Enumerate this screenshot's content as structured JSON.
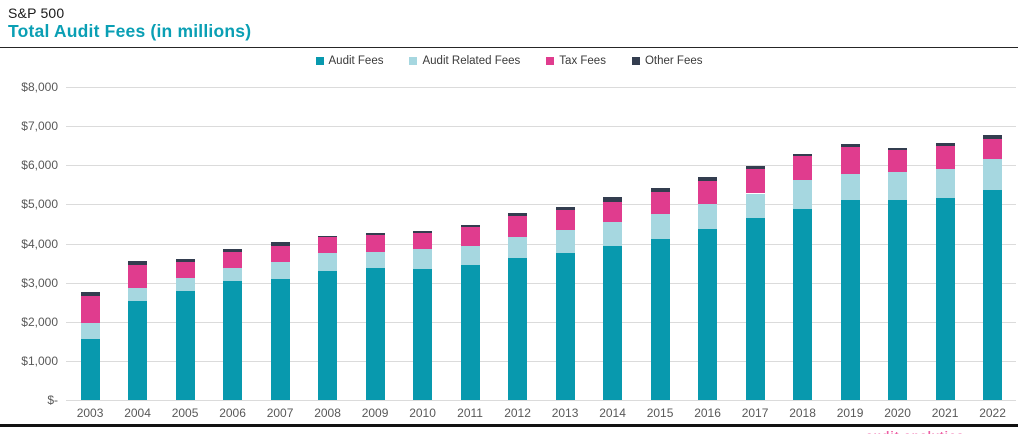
{
  "header": {
    "kicker": "S&P 500",
    "title": "Total Audit Fees (in millions)"
  },
  "colors": {
    "accent_teal": "#0899ae",
    "title_teal": "#0a9fb4",
    "light_blue": "#a6d7e0",
    "pink": "#e03c8e",
    "navy": "#333d4f",
    "gridline": "#dbdbdb",
    "axis_text": "#595959",
    "rule": "#1a1a1a"
  },
  "footer": {
    "watermark": "audit analytics"
  },
  "chart_data": {
    "type": "bar",
    "stacked": true,
    "title": "Total Audit Fees (in millions)",
    "subtitle": "S&P 500",
    "xlabel": "",
    "ylabel": "",
    "ylim": [
      0,
      8000
    ],
    "y_tick_step": 1000,
    "y_tick_labels": [
      "$8,000",
      "$7,000",
      "$6,000",
      "$5,000",
      "$4,000",
      "$3,000",
      "$2,000",
      "$1,000",
      "$-"
    ],
    "grid": true,
    "legend_position": "top-center",
    "categories": [
      "2003",
      "2004",
      "2005",
      "2006",
      "2007",
      "2008",
      "2009",
      "2010",
      "2011",
      "2012",
      "2013",
      "2014",
      "2015",
      "2016",
      "2017",
      "2018",
      "2019",
      "2020",
      "2021",
      "2022"
    ],
    "series": [
      {
        "name": "Audit Fees",
        "key": "audit-fees",
        "color": "#0899ae",
        "values": [
          1570,
          2530,
          2800,
          3050,
          3100,
          3300,
          3370,
          3350,
          3450,
          3630,
          3750,
          3940,
          4120,
          4370,
          4650,
          4890,
          5110,
          5110,
          5170,
          5370
        ]
      },
      {
        "name": "Audit Related Fees",
        "key": "audit-related-fees",
        "color": "#a6d7e0",
        "values": [
          410,
          340,
          310,
          320,
          440,
          450,
          420,
          510,
          490,
          530,
          600,
          600,
          630,
          640,
          630,
          730,
          660,
          710,
          730,
          790
        ]
      },
      {
        "name": "Tax Fees",
        "key": "tax-fees",
        "color": "#e03c8e",
        "values": [
          670,
          580,
          420,
          410,
          400,
          410,
          420,
          400,
          480,
          550,
          510,
          530,
          570,
          600,
          620,
          610,
          710,
          570,
          600,
          510
        ]
      },
      {
        "name": "Other Fees",
        "key": "other-fees",
        "color": "#333d4f",
        "values": [
          100,
          110,
          70,
          80,
          100,
          40,
          50,
          60,
          50,
          80,
          80,
          130,
          110,
          90,
          90,
          70,
          60,
          60,
          70,
          100
        ]
      }
    ],
    "totals_estimated": [
      2750,
      3560,
      3600,
      3860,
      4040,
      4200,
      4260,
      4320,
      4470,
      4790,
      4940,
      5200,
      5430,
      5700,
      5990,
      6300,
      6540,
      6450,
      6570,
      6770
    ]
  }
}
